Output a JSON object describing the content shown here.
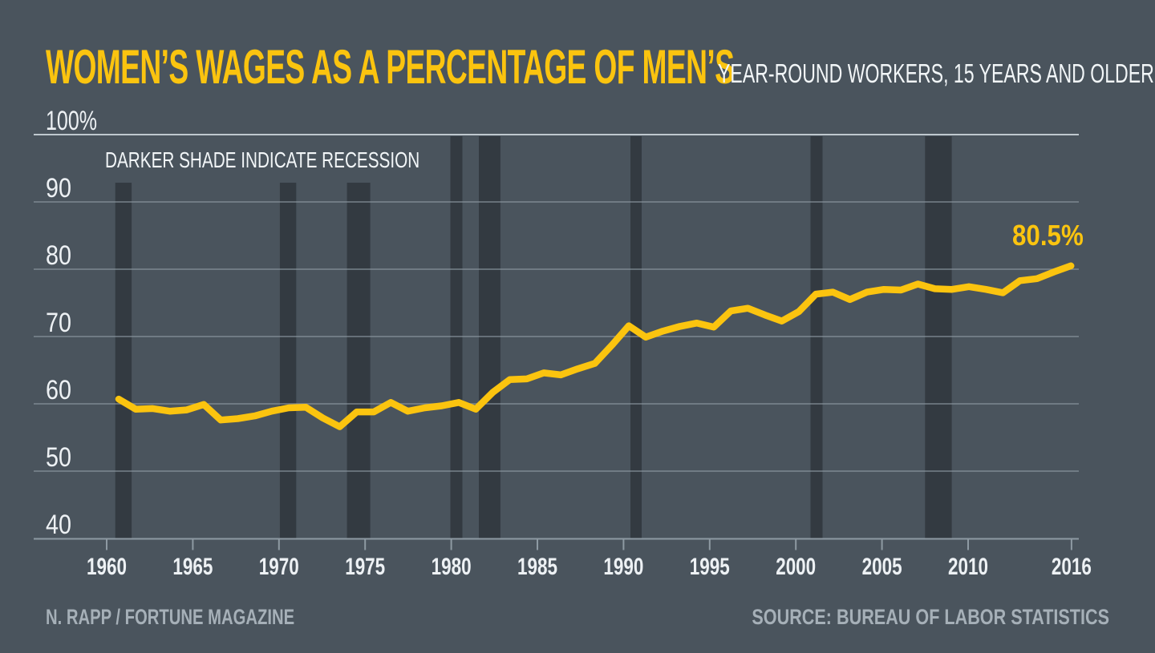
{
  "header": {
    "title": "WOMEN’S WAGES AS A PERCENTAGE OF MEN’S",
    "subtitle": "YEAR-ROUND WORKERS, 15 YEARS AND OLDER"
  },
  "annotation": "DARKER SHADE INDICATE RECESSION",
  "end_label": "80.5%",
  "footer": {
    "credit": "N. RAPP / FORTUNE MAGAZINE",
    "source": "SOURCE: BUREAU OF LABOR STATISTICS"
  },
  "colors": {
    "background": "#4A545D",
    "accent_yellow": "#FBC40F",
    "recession_band": "#333A41",
    "gridline": "#8E9AA3",
    "top_gridline": "#C6CFD5",
    "axis_text": "#EDF1F4",
    "footer_text": "#A6B0B8"
  },
  "chart_data": {
    "type": "line",
    "title": "Women's wages as a percentage of men's, year-round workers, 15 years and older",
    "x": [
      1960,
      1961,
      1962,
      1963,
      1964,
      1965,
      1966,
      1967,
      1968,
      1969,
      1970,
      1971,
      1972,
      1973,
      1974,
      1975,
      1976,
      1977,
      1978,
      1979,
      1980,
      1981,
      1982,
      1983,
      1984,
      1985,
      1986,
      1987,
      1988,
      1989,
      1990,
      1991,
      1992,
      1993,
      1994,
      1995,
      1996,
      1997,
      1998,
      1999,
      2000,
      2001,
      2002,
      2003,
      2004,
      2005,
      2006,
      2007,
      2008,
      2009,
      2010,
      2011,
      2012,
      2013,
      2014,
      2015,
      2016
    ],
    "values": [
      60.7,
      59.2,
      59.3,
      58.9,
      59.1,
      59.9,
      57.6,
      57.8,
      58.2,
      58.9,
      59.4,
      59.5,
      57.9,
      56.6,
      58.8,
      58.8,
      60.2,
      58.9,
      59.4,
      59.7,
      60.2,
      59.2,
      61.7,
      63.6,
      63.7,
      64.6,
      64.3,
      65.2,
      66.0,
      68.7,
      71.6,
      69.9,
      70.8,
      71.5,
      72.0,
      71.4,
      73.8,
      74.2,
      73.2,
      72.3,
      73.7,
      76.3,
      76.6,
      75.5,
      76.6,
      77.0,
      76.9,
      77.8,
      77.1,
      77.0,
      77.4,
      77.0,
      76.5,
      78.3,
      78.6,
      79.6,
      80.5
    ],
    "ylim": [
      40,
      100
    ],
    "yticks": [
      100,
      90,
      80,
      70,
      60,
      50,
      40
    ],
    "ytick_labels": [
      "100%",
      "90",
      "80",
      "70",
      "60",
      "50",
      "40"
    ],
    "xticks": [
      1960,
      1965,
      1970,
      1975,
      1980,
      1985,
      1990,
      1995,
      2000,
      2005,
      2010,
      2016
    ],
    "grid": true,
    "legend": "none",
    "line_color": "#FBC40F",
    "end_label": "80.5%",
    "recessions": [
      {
        "start": 1960.5,
        "end": 1961.45,
        "short": true
      },
      {
        "start": 1970.05,
        "end": 1971.0,
        "short": true
      },
      {
        "start": 1973.95,
        "end": 1975.3,
        "short": true
      },
      {
        "start": 1979.95,
        "end": 1980.65,
        "short": false
      },
      {
        "start": 1981.6,
        "end": 1982.85,
        "short": false
      },
      {
        "start": 1990.4,
        "end": 1991.05,
        "short": false
      },
      {
        "start": 2000.85,
        "end": 2001.55,
        "short": false
      },
      {
        "start": 2007.5,
        "end": 2009.05,
        "short": false
      }
    ]
  }
}
